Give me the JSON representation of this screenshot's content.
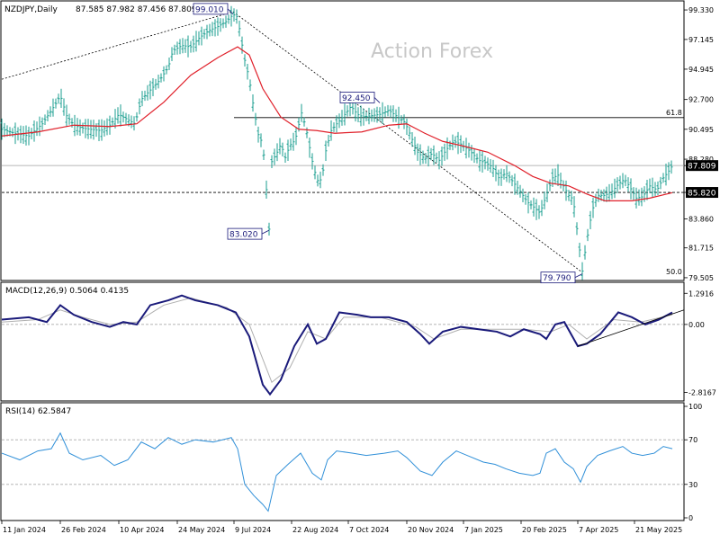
{
  "header": {
    "symbol": "NZDJPY,Daily",
    "ohlc": "87.585 87.982 87.456 87.809"
  },
  "watermark": "Action Forex",
  "colors": {
    "price_bar": "#1a9e8f",
    "sma": "#e0202a",
    "macd": "#1a1a7a",
    "signal": "#b0b0b0",
    "rsi": "#2f8fd8",
    "frame": "#000000",
    "label_fg": "#1a1a7a",
    "price_tag_bg": "#000000"
  },
  "chart_data": [
    {
      "type": "ohlc",
      "name": "price",
      "ylim": [
        79.5,
        99.8
      ],
      "y_ticks": [
        "99.330",
        "97.145",
        "94.945",
        "92.700",
        "90.495",
        "88.280",
        "87.809",
        "85.820",
        "83.860",
        "81.715",
        "79.505"
      ],
      "x_ticks": [
        "11 Jan 2024",
        "26 Feb 2024",
        "10 Apr 2024",
        "24 May 2024",
        "9 Jul 2024",
        "22 Aug 2024",
        "7 Oct 2024",
        "20 Nov 2024",
        "7 Jan 2025",
        "20 Feb 2025",
        "7 Apr 2025",
        "21 May 2025"
      ],
      "series_path": [
        [
          0,
          90.5
        ],
        [
          15,
          90.2
        ],
        [
          30,
          90.0
        ],
        [
          45,
          90.9
        ],
        [
          52,
          91.6
        ],
        [
          60,
          92.4
        ],
        [
          65,
          93.0
        ],
        [
          72,
          91.5
        ],
        [
          80,
          90.8
        ],
        [
          88,
          90.6
        ],
        [
          98,
          90.5
        ],
        [
          110,
          90.4
        ],
        [
          120,
          90.8
        ],
        [
          130,
          91.6
        ],
        [
          140,
          91.2
        ],
        [
          148,
          90.9
        ],
        [
          155,
          92.7
        ],
        [
          165,
          93.4
        ],
        [
          175,
          94.1
        ],
        [
          185,
          95.1
        ],
        [
          190,
          96.3
        ],
        [
          200,
          96.7
        ],
        [
          210,
          96.6
        ],
        [
          220,
          97.3
        ],
        [
          230,
          97.8
        ],
        [
          240,
          98.1
        ],
        [
          250,
          98.5
        ],
        [
          257,
          99.0
        ],
        [
          262,
          98.8
        ],
        [
          266,
          97.1
        ],
        [
          270,
          95.6
        ],
        [
          275,
          94.2
        ],
        [
          280,
          92.0
        ],
        [
          285,
          90.1
        ],
        [
          290,
          89.4
        ],
        [
          293,
          87.0
        ],
        [
          297,
          83.1
        ],
        [
          300,
          88.1
        ],
        [
          306,
          88.8
        ],
        [
          310,
          89.4
        ],
        [
          315,
          88.4
        ],
        [
          320,
          89.3
        ],
        [
          326,
          89.7
        ],
        [
          333,
          91.7
        ],
        [
          338,
          90.6
        ],
        [
          344,
          88.4
        ],
        [
          348,
          87.3
        ],
        [
          352,
          86.5
        ],
        [
          356,
          87.0
        ],
        [
          360,
          88.9
        ],
        [
          366,
          90.4
        ],
        [
          372,
          90.9
        ],
        [
          380,
          91.5
        ],
        [
          388,
          92.2
        ],
        [
          395,
          91.6
        ],
        [
          402,
          91.4
        ],
        [
          410,
          91.5
        ],
        [
          420,
          91.6
        ],
        [
          430,
          91.9
        ],
        [
          440,
          91.4
        ],
        [
          448,
          91.0
        ],
        [
          455,
          89.9
        ],
        [
          462,
          88.8
        ],
        [
          470,
          88.3
        ],
        [
          478,
          88.7
        ],
        [
          486,
          88.2
        ],
        [
          494,
          89.0
        ],
        [
          502,
          89.6
        ],
        [
          510,
          89.4
        ],
        [
          520,
          88.9
        ],
        [
          530,
          88.2
        ],
        [
          538,
          88.0
        ],
        [
          545,
          87.7
        ],
        [
          553,
          86.8
        ],
        [
          560,
          87.3
        ],
        [
          568,
          86.6
        ],
        [
          576,
          85.9
        ],
        [
          584,
          85.1
        ],
        [
          590,
          84.8
        ],
        [
          598,
          84.3
        ],
        [
          605,
          85.6
        ],
        [
          612,
          86.9
        ],
        [
          618,
          87.1
        ],
        [
          624,
          86.3
        ],
        [
          630,
          85.6
        ],
        [
          635,
          85.3
        ],
        [
          640,
          82.6
        ],
        [
          645,
          80.0
        ],
        [
          650,
          82.3
        ],
        [
          656,
          84.5
        ],
        [
          662,
          85.6
        ],
        [
          670,
          85.6
        ],
        [
          678,
          85.9
        ],
        [
          686,
          86.5
        ],
        [
          692,
          86.8
        ],
        [
          698,
          86.2
        ],
        [
          705,
          85.4
        ],
        [
          712,
          85.5
        ],
        [
          720,
          86.3
        ],
        [
          728,
          86.0
        ],
        [
          735,
          86.9
        ],
        [
          740,
          87.3
        ],
        [
          745,
          87.8
        ]
      ],
      "sma_path": [
        [
          0,
          90.0
        ],
        [
          40,
          90.3
        ],
        [
          80,
          90.8
        ],
        [
          120,
          90.7
        ],
        [
          150,
          90.9
        ],
        [
          180,
          92.5
        ],
        [
          210,
          94.5
        ],
        [
          240,
          95.8
        ],
        [
          262,
          96.6
        ],
        [
          275,
          96.0
        ],
        [
          290,
          93.5
        ],
        [
          310,
          91.4
        ],
        [
          330,
          90.5
        ],
        [
          350,
          90.4
        ],
        [
          370,
          90.2
        ],
        [
          400,
          90.3
        ],
        [
          430,
          90.8
        ],
        [
          450,
          90.9
        ],
        [
          470,
          90.2
        ],
        [
          490,
          89.6
        ],
        [
          510,
          89.3
        ],
        [
          540,
          88.8
        ],
        [
          570,
          87.8
        ],
        [
          590,
          87.0
        ],
        [
          610,
          86.5
        ],
        [
          630,
          86.3
        ],
        [
          650,
          85.7
        ],
        [
          670,
          85.2
        ],
        [
          700,
          85.2
        ],
        [
          720,
          85.4
        ],
        [
          745,
          85.8
        ]
      ],
      "annotations": [
        {
          "text": "99.010",
          "value": 99.01,
          "date_index": 257
        },
        {
          "text": "83.020",
          "value": 83.02,
          "date_index": 297
        },
        {
          "text": "92.450",
          "value": 92.45,
          "date_index": 420
        },
        {
          "text": "79.790",
          "value": 79.79,
          "date_index": 645
        }
      ],
      "levels": [
        {
          "label": "61.8",
          "value": 91.36
        },
        {
          "label": "50.0",
          "value": 79.7
        },
        {
          "label": "85.820",
          "value": 85.82
        },
        {
          "label": "87.809",
          "value": 87.809
        }
      ]
    },
    {
      "type": "line",
      "name": "MACD(12,26,9) 0.5064 0.4135",
      "ylim": [
        -3.1,
        1.6
      ],
      "y_ticks": [
        "1.2916",
        "0.00",
        "-2.8167"
      ],
      "macd_path": [
        [
          0,
          0.2
        ],
        [
          30,
          0.3
        ],
        [
          50,
          0.1
        ],
        [
          65,
          0.8
        ],
        [
          80,
          0.4
        ],
        [
          100,
          0.1
        ],
        [
          120,
          -0.1
        ],
        [
          135,
          0.1
        ],
        [
          150,
          0.0
        ],
        [
          165,
          0.8
        ],
        [
          185,
          1.0
        ],
        [
          200,
          1.2
        ],
        [
          215,
          1.0
        ],
        [
          240,
          0.8
        ],
        [
          260,
          0.5
        ],
        [
          275,
          -0.5
        ],
        [
          290,
          -2.5
        ],
        [
          298,
          -2.9
        ],
        [
          310,
          -2.3
        ],
        [
          325,
          -0.9
        ],
        [
          340,
          0.0
        ],
        [
          350,
          -0.8
        ],
        [
          360,
          -0.6
        ],
        [
          375,
          0.5
        ],
        [
          395,
          0.4
        ],
        [
          410,
          0.3
        ],
        [
          430,
          0.3
        ],
        [
          450,
          0.1
        ],
        [
          465,
          -0.4
        ],
        [
          475,
          -0.8
        ],
        [
          490,
          -0.3
        ],
        [
          510,
          -0.1
        ],
        [
          530,
          -0.2
        ],
        [
          550,
          -0.3
        ],
        [
          565,
          -0.5
        ],
        [
          580,
          -0.2
        ],
        [
          598,
          -0.4
        ],
        [
          605,
          -0.6
        ],
        [
          615,
          0.0
        ],
        [
          625,
          0.1
        ],
        [
          640,
          -0.9
        ],
        [
          650,
          -0.8
        ],
        [
          665,
          -0.4
        ],
        [
          685,
          0.5
        ],
        [
          700,
          0.3
        ],
        [
          715,
          0.0
        ],
        [
          730,
          0.2
        ],
        [
          745,
          0.5
        ]
      ],
      "signal_path": [
        [
          0,
          0.1
        ],
        [
          40,
          0.2
        ],
        [
          65,
          0.6
        ],
        [
          90,
          0.3
        ],
        [
          120,
          0.0
        ],
        [
          150,
          0.1
        ],
        [
          180,
          0.8
        ],
        [
          210,
          1.1
        ],
        [
          250,
          0.7
        ],
        [
          275,
          0.0
        ],
        [
          300,
          -2.4
        ],
        [
          320,
          -1.8
        ],
        [
          340,
          -0.3
        ],
        [
          360,
          -0.6
        ],
        [
          380,
          0.3
        ],
        [
          420,
          0.3
        ],
        [
          460,
          -0.1
        ],
        [
          480,
          -0.6
        ],
        [
          510,
          -0.2
        ],
        [
          550,
          -0.2
        ],
        [
          580,
          -0.2
        ],
        [
          610,
          -0.3
        ],
        [
          630,
          0.0
        ],
        [
          650,
          -0.6
        ],
        [
          680,
          0.2
        ],
        [
          710,
          0.1
        ],
        [
          745,
          0.4
        ]
      ],
      "trendline": [
        [
          640,
          -0.9
        ],
        [
          758,
          0.6
        ]
      ]
    },
    {
      "type": "line",
      "name": "RSI(14) 62.5847",
      "ylim": [
        0,
        100
      ],
      "y_ticks": [
        "100",
        "70",
        "30",
        "0"
      ],
      "rsi_path": [
        [
          0,
          58
        ],
        [
          20,
          52
        ],
        [
          40,
          60
        ],
        [
          55,
          62
        ],
        [
          65,
          76
        ],
        [
          75,
          58
        ],
        [
          90,
          52
        ],
        [
          110,
          56
        ],
        [
          125,
          47
        ],
        [
          140,
          52
        ],
        [
          155,
          68
        ],
        [
          170,
          62
        ],
        [
          185,
          72
        ],
        [
          200,
          66
        ],
        [
          215,
          70
        ],
        [
          235,
          68
        ],
        [
          255,
          72
        ],
        [
          262,
          62
        ],
        [
          270,
          30
        ],
        [
          280,
          20
        ],
        [
          290,
          12
        ],
        [
          296,
          6
        ],
        [
          305,
          38
        ],
        [
          318,
          48
        ],
        [
          332,
          58
        ],
        [
          345,
          40
        ],
        [
          355,
          34
        ],
        [
          362,
          52
        ],
        [
          372,
          60
        ],
        [
          390,
          58
        ],
        [
          405,
          56
        ],
        [
          425,
          58
        ],
        [
          440,
          60
        ],
        [
          450,
          54
        ],
        [
          465,
          42
        ],
        [
          478,
          38
        ],
        [
          490,
          50
        ],
        [
          505,
          60
        ],
        [
          520,
          55
        ],
        [
          535,
          50
        ],
        [
          548,
          48
        ],
        [
          560,
          44
        ],
        [
          575,
          40
        ],
        [
          590,
          38
        ],
        [
          598,
          40
        ],
        [
          605,
          58
        ],
        [
          615,
          62
        ],
        [
          625,
          50
        ],
        [
          635,
          44
        ],
        [
          643,
          32
        ],
        [
          650,
          46
        ],
        [
          662,
          56
        ],
        [
          675,
          60
        ],
        [
          690,
          64
        ],
        [
          700,
          58
        ],
        [
          712,
          56
        ],
        [
          725,
          58
        ],
        [
          735,
          64
        ],
        [
          745,
          62
        ]
      ]
    }
  ]
}
